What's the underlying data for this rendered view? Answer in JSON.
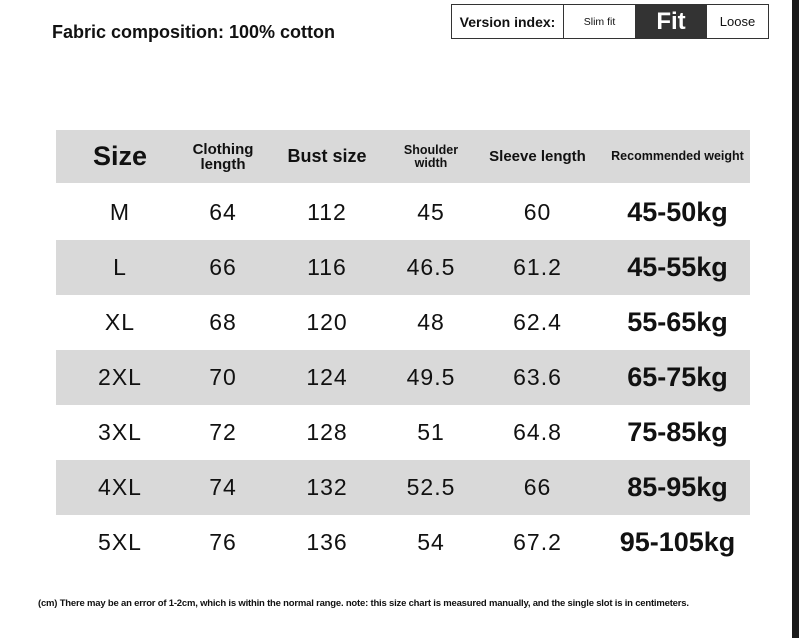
{
  "title": "Fabric composition: 100% cotton",
  "version": {
    "label": "Version index:",
    "options": [
      "Slim fit",
      "Fit",
      "Loose"
    ],
    "selected": "Fit"
  },
  "table": {
    "headers": [
      "Size",
      "Clothing length",
      "Bust size",
      "Shoulder width",
      "Sleeve length",
      "Recommended weight"
    ],
    "rows": [
      [
        "M",
        "64",
        "112",
        "45",
        "60",
        "45-50kg"
      ],
      [
        "L",
        "66",
        "116",
        "46.5",
        "61.2",
        "45-55kg"
      ],
      [
        "XL",
        "68",
        "120",
        "48",
        "62.4",
        "55-65kg"
      ],
      [
        "2XL",
        "70",
        "124",
        "49.5",
        "63.6",
        "65-75kg"
      ],
      [
        "3XL",
        "72",
        "128",
        "51",
        "64.8",
        "75-85kg"
      ],
      [
        "4XL",
        "74",
        "132",
        "52.5",
        "66",
        "85-95kg"
      ],
      [
        "5XL",
        "76",
        "136",
        "54",
        "67.2",
        "95-105kg"
      ]
    ]
  },
  "note": "(cm) There may be an error of 1-2cm, which is within the normal range. note: this size chart is measured manually, and the single slot is in centimeters.",
  "colors": {
    "row_gray": "#d9d9d9",
    "selected_bg": "#333333"
  }
}
